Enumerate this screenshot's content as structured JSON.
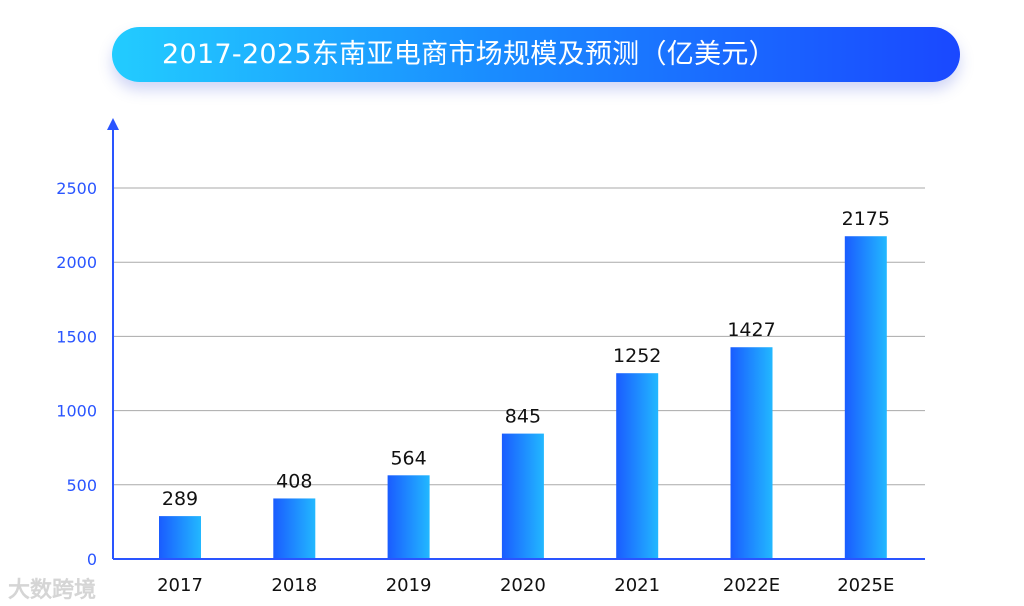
{
  "chart_data": {
    "type": "bar",
    "title": "2017-2025东南亚电商市场规模及预测（亿美元）",
    "categories": [
      "2017",
      "2018",
      "2019",
      "2020",
      "2021",
      "2022E",
      "2025E"
    ],
    "values": [
      289,
      408,
      564,
      845,
      1252,
      1427,
      2175
    ],
    "data_labels": [
      "289",
      "408",
      "564",
      "845",
      "1252",
      "1427",
      "2175"
    ],
    "ylim": [
      0,
      2500
    ],
    "yticks": [
      0,
      500,
      1000,
      1500,
      2000,
      2500
    ],
    "grid": true,
    "legend": "none",
    "colors": {
      "bar_left": "#1a5cff",
      "bar_right": "#22b8ff",
      "axis": "#2a55ff",
      "tick_label": "#2a55ff",
      "grid": "#aaaaaa"
    }
  },
  "watermark": "大数跨境"
}
